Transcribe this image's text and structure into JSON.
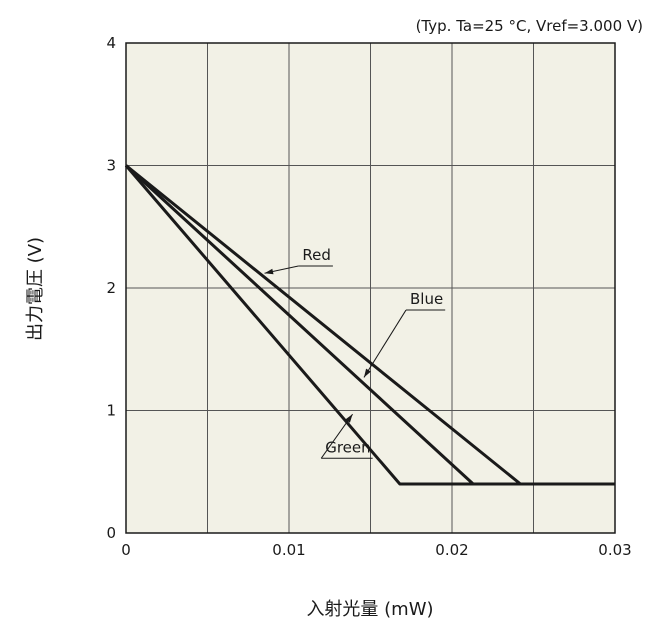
{
  "chart_data": {
    "type": "line",
    "title": "",
    "condition_note": "(Typ. Ta=25 °C, Vref=3.000 V)",
    "xlabel": "入射光量 (mW)",
    "ylabel": "出力電圧 (V)",
    "xlim": [
      0,
      0.03
    ],
    "ylim": [
      0,
      4
    ],
    "x_ticks": [
      0,
      0.01,
      0.02,
      0.03
    ],
    "x_tick_labels": [
      "0",
      "0.01",
      "0.02",
      "0.03"
    ],
    "y_ticks": [
      0,
      1,
      2,
      3,
      4
    ],
    "y_tick_labels": [
      "0",
      "1",
      "2",
      "3",
      "4"
    ],
    "x_grid_step": 0.005,
    "y_grid_step": 1,
    "grid": true,
    "plot_background": "#f2f1e6",
    "line_color": "#1a1a1a",
    "series": [
      {
        "name": "Red",
        "x": [
          0,
          0.0242,
          0.03
        ],
        "y": [
          3.0,
          0.4,
          0.4
        ],
        "label_anchor": {
          "x": 0.0107,
          "y": 2.18
        },
        "arrow_to": {
          "x": 0.0085,
          "y": 2.12
        }
      },
      {
        "name": "Blue",
        "x": [
          0,
          0.0213,
          0.03
        ],
        "y": [
          3.0,
          0.4,
          0.4
        ],
        "label_anchor": {
          "x": 0.0173,
          "y": 1.82
        },
        "arrow_to": {
          "x": 0.0146,
          "y": 1.27
        }
      },
      {
        "name": "Green",
        "x": [
          0,
          0.0168,
          0.03
        ],
        "y": [
          3.0,
          0.4,
          0.4
        ],
        "label_anchor": {
          "x": 0.0121,
          "y": 0.61
        },
        "arrow_to": {
          "x": 0.0139,
          "y": 0.97
        }
      }
    ]
  }
}
